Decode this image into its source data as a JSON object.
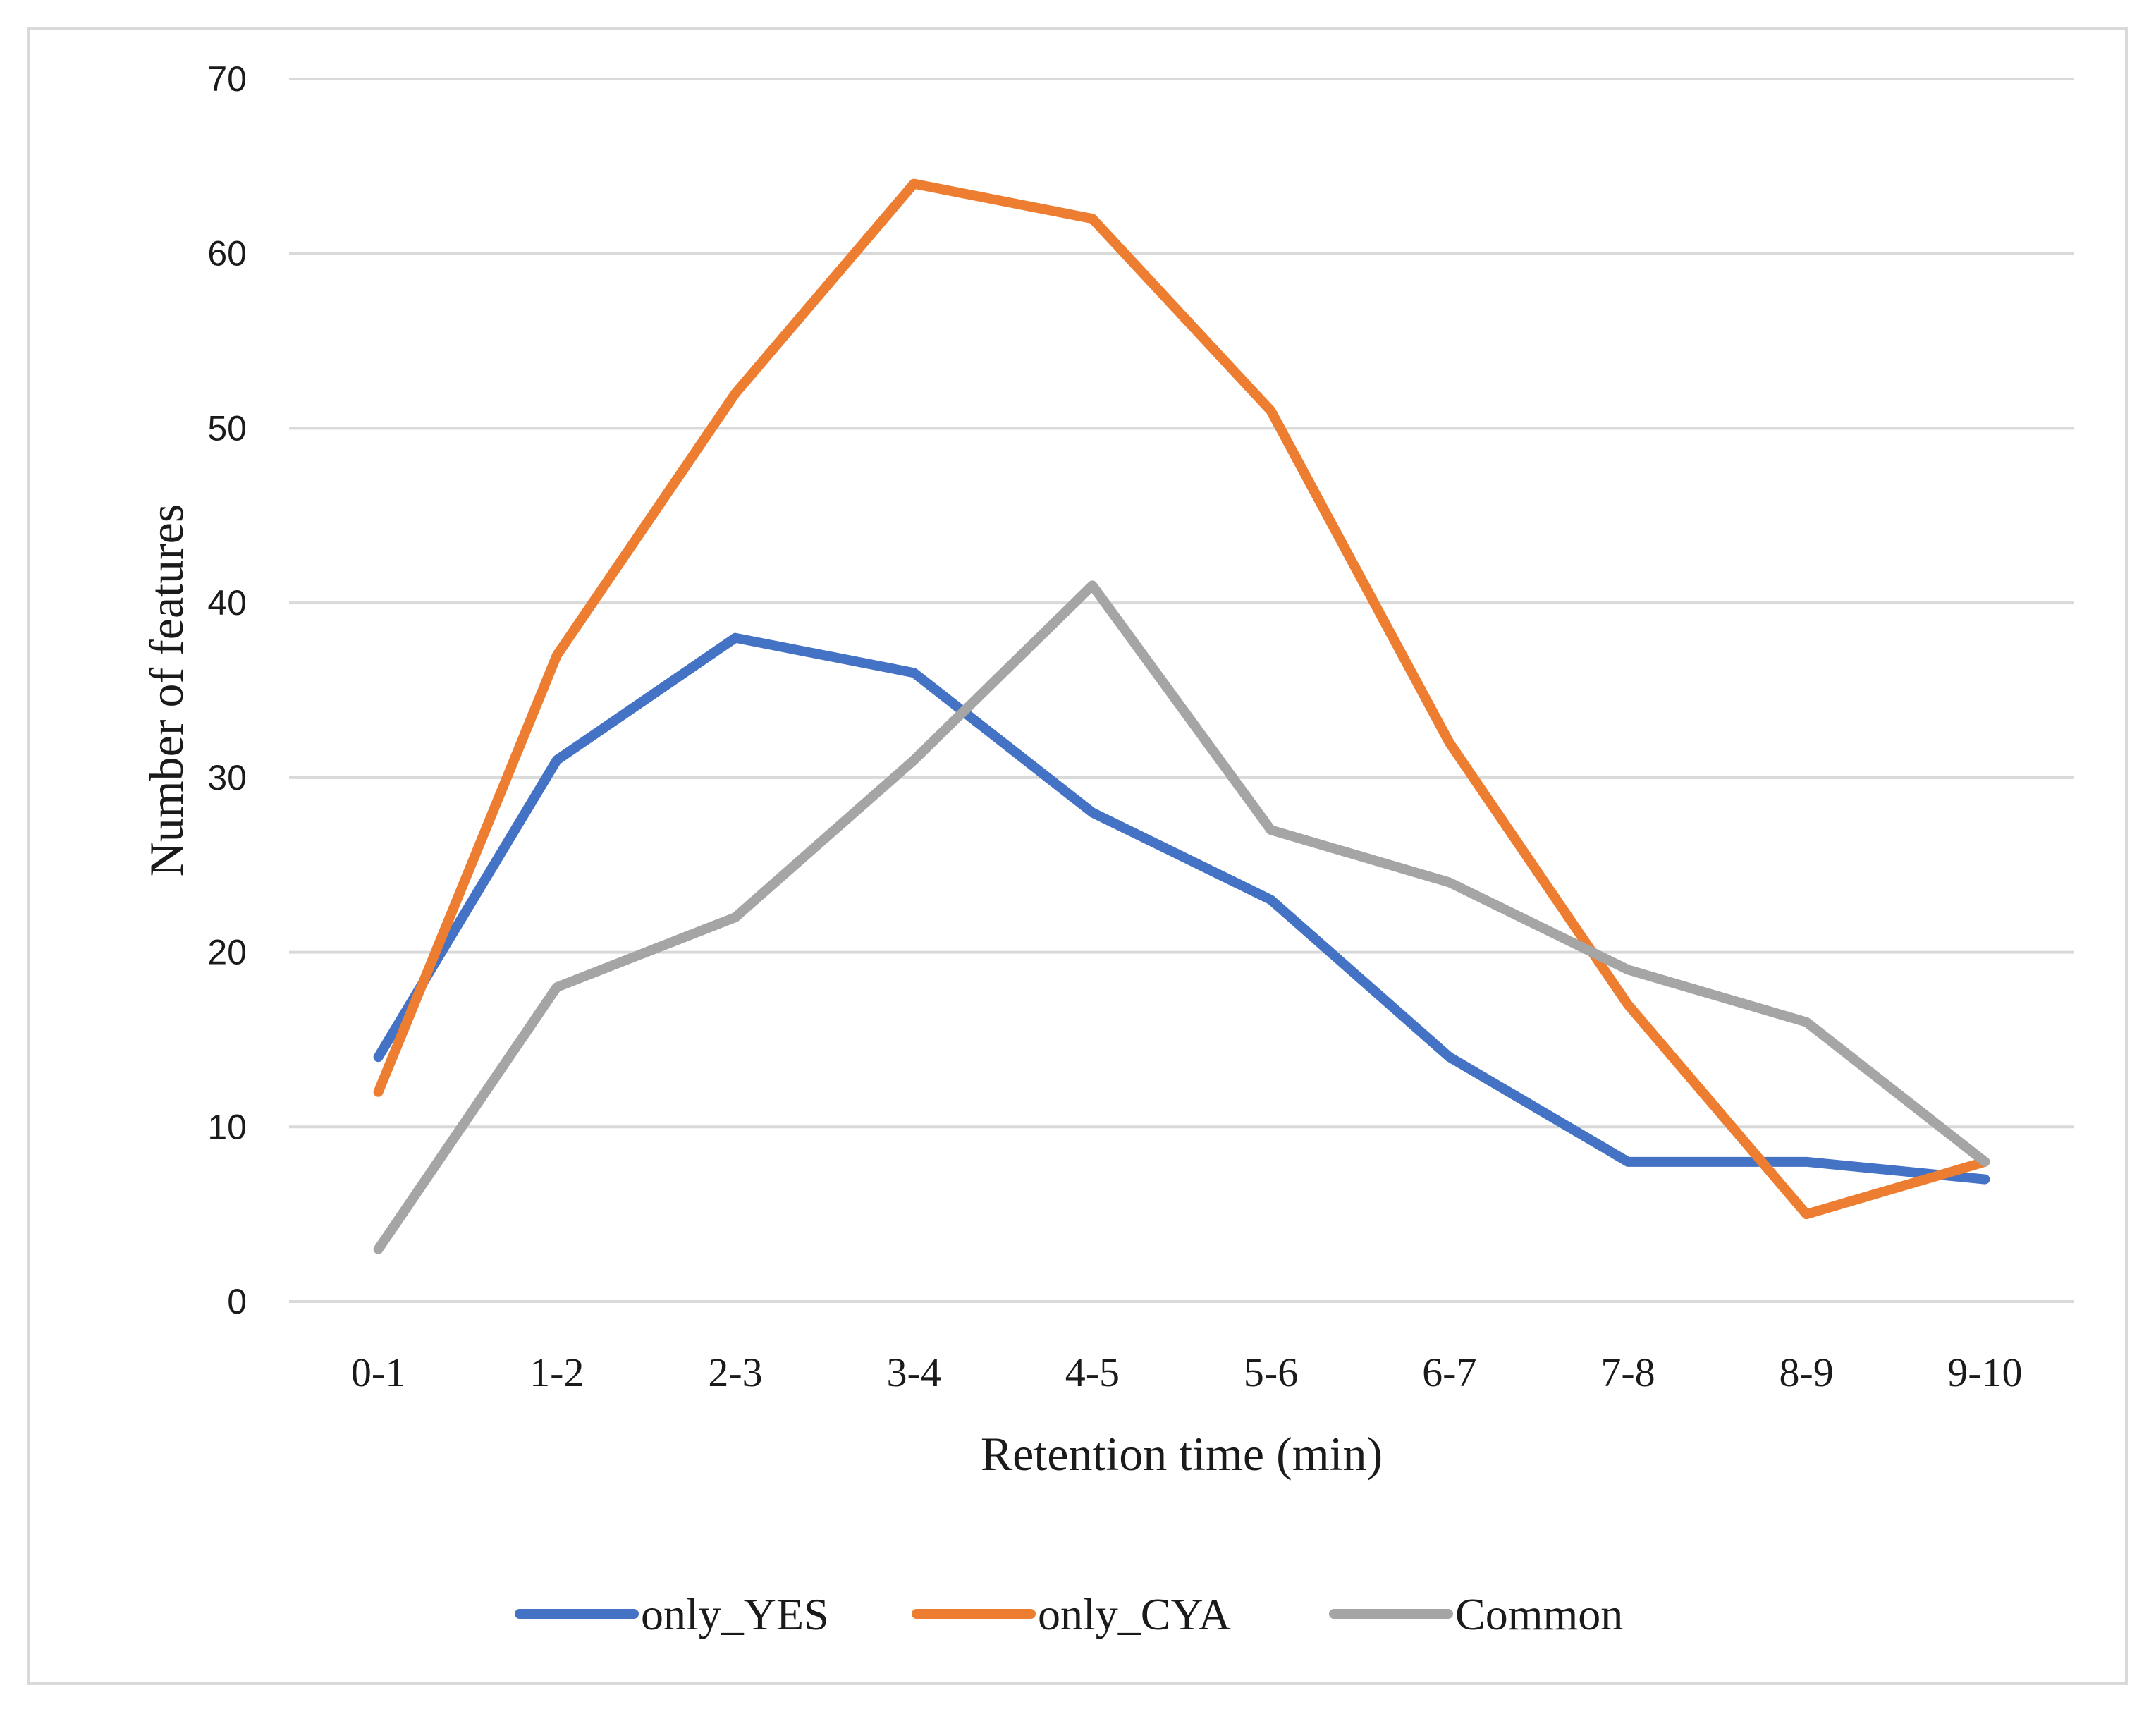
{
  "chart_data": {
    "type": "line",
    "title": "",
    "xlabel": "Retention time (min)",
    "ylabel": "Number of features",
    "categories": [
      "0-1",
      "1-2",
      "2-3",
      "3-4",
      "4-5",
      "5-6",
      "6-7",
      "7-8",
      "8-9",
      "9-10"
    ],
    "ylim": [
      0,
      70
    ],
    "yticks": [
      0,
      10,
      20,
      30,
      40,
      50,
      60,
      70
    ],
    "grid": "horizontal",
    "legend": "bottom",
    "series": [
      {
        "name": "only_YES",
        "color": "#4472c4",
        "values": [
          14,
          31,
          38,
          36,
          28,
          23,
          14,
          8,
          8,
          7
        ]
      },
      {
        "name": "only_CYA",
        "color": "#ed7d31",
        "values": [
          12,
          37,
          52,
          64,
          62,
          51,
          32,
          17,
          5,
          8
        ]
      },
      {
        "name": "Common",
        "color": "#a5a5a5",
        "values": [
          3,
          18,
          22,
          31,
          41,
          27,
          24,
          19,
          16,
          8
        ]
      }
    ]
  }
}
